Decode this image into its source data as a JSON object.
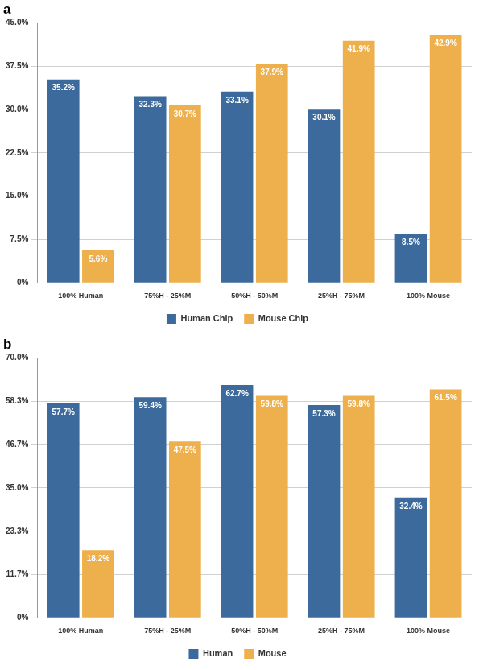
{
  "chart_data": [
    {
      "type": "bar",
      "title": "a",
      "categories": [
        "100% Human",
        "75%H - 25%M",
        "50%H - 50%M",
        "25%H - 75%M",
        "100% Mouse"
      ],
      "series": [
        {
          "name": "Human Chip",
          "color": "#3d6a9c",
          "values": [
            35.2,
            32.3,
            33.1,
            30.1,
            8.5
          ],
          "value_labels": [
            "35.2%",
            "32.3%",
            "33.1%",
            "30.1%",
            "8.5%"
          ]
        },
        {
          "name": "Mouse Chip",
          "color": "#eeb04c",
          "values": [
            5.6,
            30.7,
            37.9,
            41.9,
            42.9
          ],
          "value_labels": [
            "5.6%",
            "30.7%",
            "37.9%",
            "41.9%",
            "42.9%"
          ]
        }
      ],
      "ylim": [
        0,
        45
      ],
      "yticks": [
        {
          "value": 0,
          "label": "0%"
        },
        {
          "value": 7.5,
          "label": "7.5%"
        },
        {
          "value": 15,
          "label": "15.0%"
        },
        {
          "value": 22.5,
          "label": "22.5%"
        },
        {
          "value": 30,
          "label": "30.0%"
        },
        {
          "value": 37.5,
          "label": "37.5%"
        },
        {
          "value": 45,
          "label": "45.0%"
        }
      ],
      "grid": true,
      "legend": "bottom",
      "data_labels": true
    },
    {
      "type": "bar",
      "title": "b",
      "categories": [
        "100% Human",
        "75%H - 25%M",
        "50%H - 50%M",
        "25%H - 75%M",
        "100% Mouse"
      ],
      "series": [
        {
          "name": "Human",
          "color": "#3d6a9c",
          "values": [
            57.7,
            59.4,
            62.7,
            57.3,
            32.4
          ],
          "value_labels": [
            "57.7%",
            "59.4%",
            "62.7%",
            "57.3%",
            "32.4%"
          ]
        },
        {
          "name": "Mouse",
          "color": "#eeb04c",
          "values": [
            18.2,
            47.5,
            59.8,
            59.8,
            61.5
          ],
          "value_labels": [
            "18.2%",
            "47.5%",
            "59.8%",
            "59.8%",
            "61.5%"
          ]
        }
      ],
      "ylim": [
        0,
        70
      ],
      "yticks": [
        {
          "value": 0,
          "label": "0%"
        },
        {
          "value": 11.7,
          "label": "11.7%"
        },
        {
          "value": 23.3,
          "label": "23.3%"
        },
        {
          "value": 35,
          "label": "35.0%"
        },
        {
          "value": 46.7,
          "label": "46.7%"
        },
        {
          "value": 58.3,
          "label": "58.3%"
        },
        {
          "value": 70,
          "label": "70.0%"
        }
      ],
      "grid": true,
      "legend": "bottom",
      "data_labels": true
    }
  ]
}
